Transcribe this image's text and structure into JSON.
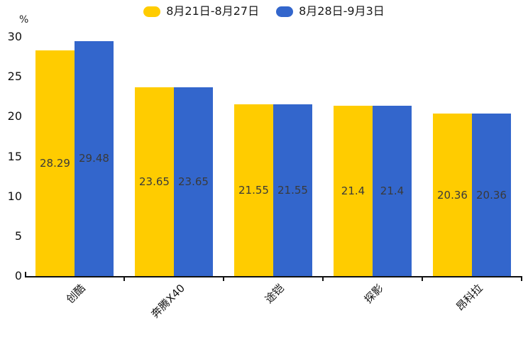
{
  "chart_data": {
    "type": "bar",
    "title": "",
    "unit_label": "%",
    "categories": [
      "创酷",
      "奔腾X40",
      "途铠",
      "探影",
      "昂科拉"
    ],
    "series": [
      {
        "name": "8月21日-8月27日",
        "color": "#FFCC00",
        "values": [
          28.29,
          23.65,
          21.55,
          21.4,
          20.36
        ]
      },
      {
        "name": "8月28日-9月3日",
        "color": "#3366CC",
        "values": [
          29.48,
          23.65,
          21.55,
          21.4,
          20.36
        ]
      }
    ],
    "ylim": [
      0,
      30
    ],
    "yticks": [
      0,
      5,
      10,
      15,
      20,
      25,
      30
    ],
    "legend_position": "top-center",
    "grid": false,
    "value_labels": true,
    "value_label_color": "#3a3a3a",
    "axis_color": "#111111"
  }
}
